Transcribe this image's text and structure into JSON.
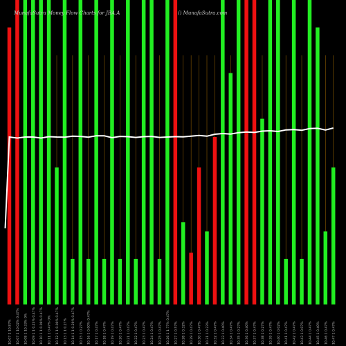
{
  "header": {
    "title": "MunafaSutra Money Flow Charts for JBA.A",
    "site": "() MunafaSutra.com"
  },
  "chart_data": {
    "type": "bar",
    "title": "MunafaSutra Money Flow Charts for JBA.A",
    "note": "Bars: daily money flow volume (green = inflow, red = outflow); white line: price. Values are relative (0-100) as no y-axis is printed.",
    "ylim": [
      0,
      100
    ],
    "grid": true,
    "gridline_color": "#8a5a00",
    "colors": {
      "green": "#22ee22",
      "red": "#ee1111",
      "line": "#ffffff"
    },
    "categories": [
      "10.07 2 10.87%",
      "10.07 2 10.02% 0.47%",
      "10.08 1 10.33% 0%",
      "10.09 1 1 0.23% 0.47%",
      "10.10 1 1 0.09% 0.47%",
      "10.11 1 0.47% 0%",
      "10.12 1 1 0.00% 0.47%",
      "10.13 1 1 0.27%",
      "10.14 1 1 0.29% 0.47%",
      "10.15 1 0.27%",
      "10.16 1 0.00% 0.47%",
      "10.17 1 0.47%",
      "10.18 1 0.47%",
      "10.19 1 0.47%",
      "10.20 1 0.47%",
      "10.21 1 0.47%",
      "10.22 1 0.47%",
      "10.23 1 0.47%",
      "10.24 1 0.47%",
      "10.25 1 0.47%",
      "10.26 1 1.77% 0.47%",
      "10.27 1 0.57%",
      "10.28 1 0.32%",
      "10.29 1 0.47%",
      "10.30 1 0.47%",
      "10.31 1 0.23%",
      "10.32 1 0.47%",
      "10.33 1 0.40%",
      "10.34 1 0.47%",
      "10.35 1 0.27%",
      "10.36 1 0.40%",
      "10.37 1 0.47%",
      "10.38 1 0.27%",
      "10.39 1 0.47%",
      "10.40 1 0.02%",
      "10.41 1 0.47%",
      "10.42 1 0.47%",
      "10.43 1 0.07%",
      "10.44 1 0.47%",
      "10.45 1 0.40%",
      "10.46 1 0.47%",
      "10.47 1 0.47%"
    ],
    "series": [
      {
        "color": [
          "red",
          "red",
          "green",
          "green",
          "green",
          "green",
          "green",
          "green",
          "green",
          "green",
          "green",
          "green",
          "green",
          "green",
          "green",
          "green",
          "green",
          "green",
          "green",
          "green",
          "green",
          "red",
          "green",
          "red",
          "red",
          "green",
          "red",
          "green",
          "green",
          "green",
          "red",
          "red",
          "green",
          "green",
          "green",
          "green",
          "green",
          "green",
          "green",
          "green",
          "green",
          "green"
        ],
        "values": [
          91,
          100,
          100,
          100,
          100,
          100,
          45,
          100,
          15,
          100,
          15,
          100,
          15,
          100,
          15,
          100,
          15,
          100,
          100,
          15,
          100,
          100,
          27,
          17,
          45,
          24,
          55,
          100,
          76,
          100,
          100,
          100,
          61,
          100,
          100,
          15,
          100,
          15,
          100,
          91,
          24,
          45
        ]
      }
    ],
    "line": {
      "values": [
        55.0,
        55.0,
        55.0,
        55.0,
        55.0,
        55.1,
        55.0,
        55.3,
        55.3,
        55.2,
        55.3,
        55.4,
        55.4,
        55.1,
        55.2,
        55.1,
        55.2,
        55.1,
        55.2,
        55.2,
        55.0,
        55.1,
        55.4,
        55.3,
        55.5,
        55.6,
        55.9,
        56.1,
        56.3,
        56.4,
        56.6,
        56.8,
        56.9,
        57.0,
        57.1,
        57.3,
        57.4,
        57.5,
        57.7,
        57.8,
        57.6,
        57.9
      ],
      "lead_in": 0
    }
  }
}
